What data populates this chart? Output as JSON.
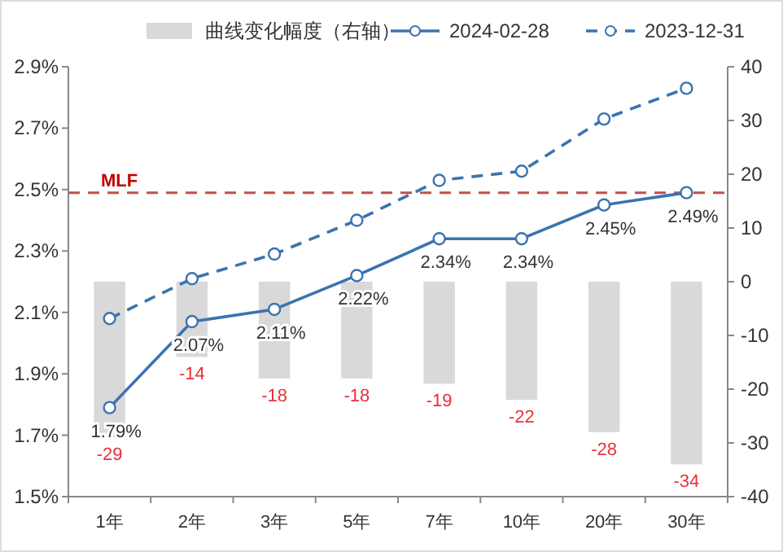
{
  "chart_data": {
    "type": "line",
    "categories": [
      "1年",
      "2年",
      "3年",
      "5年",
      "7年",
      "10年",
      "20年",
      "30年"
    ],
    "series": [
      {
        "name": "曲线变化幅度（右轴）",
        "type": "bar",
        "axis": "y2",
        "color": "#d9d9d9",
        "values": [
          -29,
          -14,
          -18,
          -18,
          -19,
          -22,
          -28,
          -34
        ],
        "value_labels": [
          "-29",
          "-14",
          "-18",
          "-18",
          "-19",
          "-22",
          "-28",
          "-34"
        ]
      },
      {
        "name": "2024-02-28",
        "color": "#3a73b0",
        "line_style": "solid",
        "marker": "circle",
        "values": [
          1.79,
          2.07,
          2.11,
          2.22,
          2.34,
          2.34,
          2.45,
          2.49
        ],
        "value_labels": [
          "1.79%",
          "2.07%",
          "2.11%",
          "2.22%",
          "2.34%",
          "2.34%",
          "2.45%",
          "2.49%"
        ]
      },
      {
        "name": "2023-12-31",
        "color": "#3a73b0",
        "line_style": "dashed",
        "marker": "circle",
        "values": [
          2.08,
          2.21,
          2.29,
          2.4,
          2.53,
          2.56,
          2.73,
          2.83
        ]
      }
    ],
    "ylim": [
      1.5,
      2.9
    ],
    "yticks": [
      {
        "value": 1.5,
        "label": "1.5%"
      },
      {
        "value": 1.7,
        "label": "1.7%"
      },
      {
        "value": 1.9,
        "label": "1.9%"
      },
      {
        "value": 2.1,
        "label": "2.1%"
      },
      {
        "value": 2.3,
        "label": "2.3%"
      },
      {
        "value": 2.5,
        "label": "2.5%"
      },
      {
        "value": 2.7,
        "label": "2.7%"
      },
      {
        "value": 2.9,
        "label": "2.9%"
      }
    ],
    "y2lim": [
      -40,
      40
    ],
    "y2ticks": [
      -40,
      -30,
      -20,
      -10,
      0,
      10,
      20,
      30,
      40
    ],
    "ref_lines": [
      {
        "axis": "y",
        "value": 2.49,
        "label": "MLF",
        "color": "#c0504d",
        "line_style": "dashed"
      }
    ],
    "legend": "top",
    "grid": false
  }
}
